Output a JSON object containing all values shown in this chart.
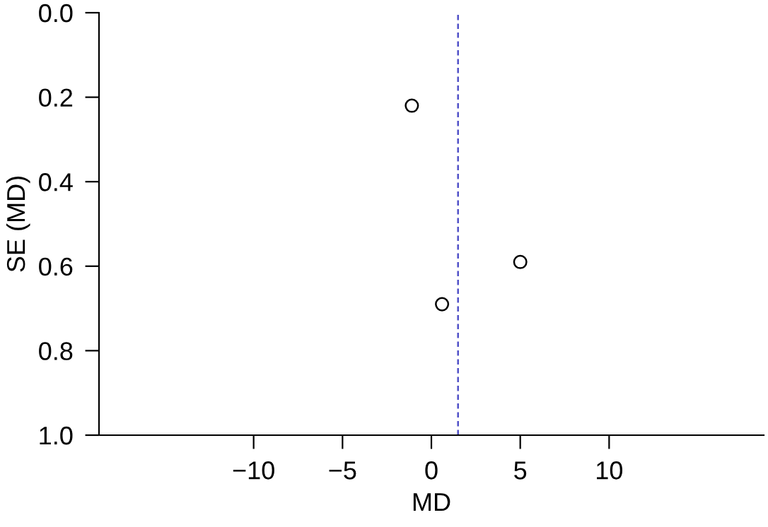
{
  "chart_data": {
    "type": "scatter",
    "xlabel": "MD",
    "ylabel": "SE (MD)",
    "x": [
      -1.1,
      5.0,
      0.6
    ],
    "values": [
      0.22,
      0.59,
      0.69
    ],
    "marker": "circle",
    "xlim": [
      -18.7,
      18.7
    ],
    "ylim": [
      1.0,
      0.0
    ],
    "xticks": [
      {
        "value": -10,
        "label": "−10"
      },
      {
        "value": -5,
        "label": "−5"
      },
      0,
      5,
      10
    ],
    "yticks": [
      {
        "value": 0.0,
        "label": "0.0"
      },
      {
        "value": 0.2,
        "label": "0.2"
      },
      {
        "value": 0.4,
        "label": "0.4"
      },
      {
        "value": 0.6,
        "label": "0.6"
      },
      {
        "value": 0.8,
        "label": "0.8"
      },
      {
        "value": 1.0,
        "label": "1.0"
      }
    ],
    "ref_lines": [
      {
        "axis": "x",
        "value": 1.5,
        "color": "#5050c8",
        "line_style": "dashed"
      }
    ],
    "grid": false
  }
}
